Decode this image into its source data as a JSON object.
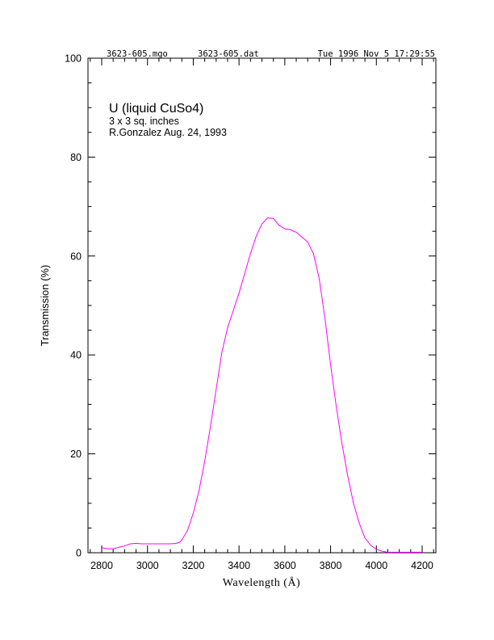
{
  "header": {
    "file1": "3623-605.mgo",
    "file2": "3623-605.dat",
    "timestamp": "Tue 1996 Nov  5 17:29:55"
  },
  "annotation": {
    "title": "U (liquid CuSo4)",
    "line2": "3 x 3  sq. inches",
    "line3": "R.Gonzalez Aug. 24, 1993"
  },
  "chart_data": {
    "type": "line",
    "xlabel": "Wavelength (Å)",
    "ylabel": "Transmission (%)",
    "xlim": [
      2740,
      4260
    ],
    "ylim": [
      0,
      100
    ],
    "xticks": [
      2800,
      3000,
      3200,
      3400,
      3600,
      3800,
      4000,
      4200
    ],
    "yticks": [
      0,
      20,
      40,
      60,
      80,
      100
    ],
    "line_color": "#ff00ff",
    "series": [
      {
        "x": [
          2800,
          2825,
          2850,
          2875,
          2900,
          2925,
          2950,
          2975,
          3000,
          3050,
          3100,
          3125,
          3140,
          3150,
          3175,
          3200,
          3225,
          3250,
          3275,
          3300,
          3325,
          3350,
          3375,
          3400,
          3425,
          3450,
          3475,
          3500,
          3525,
          3550,
          3575,
          3600,
          3625,
          3650,
          3675,
          3700,
          3725,
          3750,
          3775,
          3800,
          3825,
          3850,
          3875,
          3900,
          3925,
          3950,
          3975,
          4000,
          4025,
          4050,
          4075,
          4100,
          4125,
          4150,
          4175,
          4200
        ],
        "y": [
          1.0,
          0.8,
          0.8,
          1.1,
          1.4,
          1.8,
          1.9,
          1.8,
          1.8,
          1.8,
          1.8,
          1.9,
          2.1,
          2.6,
          4.5,
          8.0,
          12.5,
          18.5,
          25.5,
          33.0,
          40.5,
          45.5,
          49.0,
          52.5,
          56.5,
          60.5,
          64.0,
          66.5,
          67.7,
          67.6,
          66.2,
          65.5,
          65.3,
          64.8,
          63.8,
          62.8,
          60.5,
          55.5,
          47.5,
          38.0,
          29.5,
          22.0,
          15.5,
          10.0,
          6.0,
          3.0,
          1.5,
          0.7,
          0.3,
          0.1,
          0.1,
          0.1,
          0.1,
          0.1,
          0.1,
          0.1
        ]
      }
    ]
  }
}
